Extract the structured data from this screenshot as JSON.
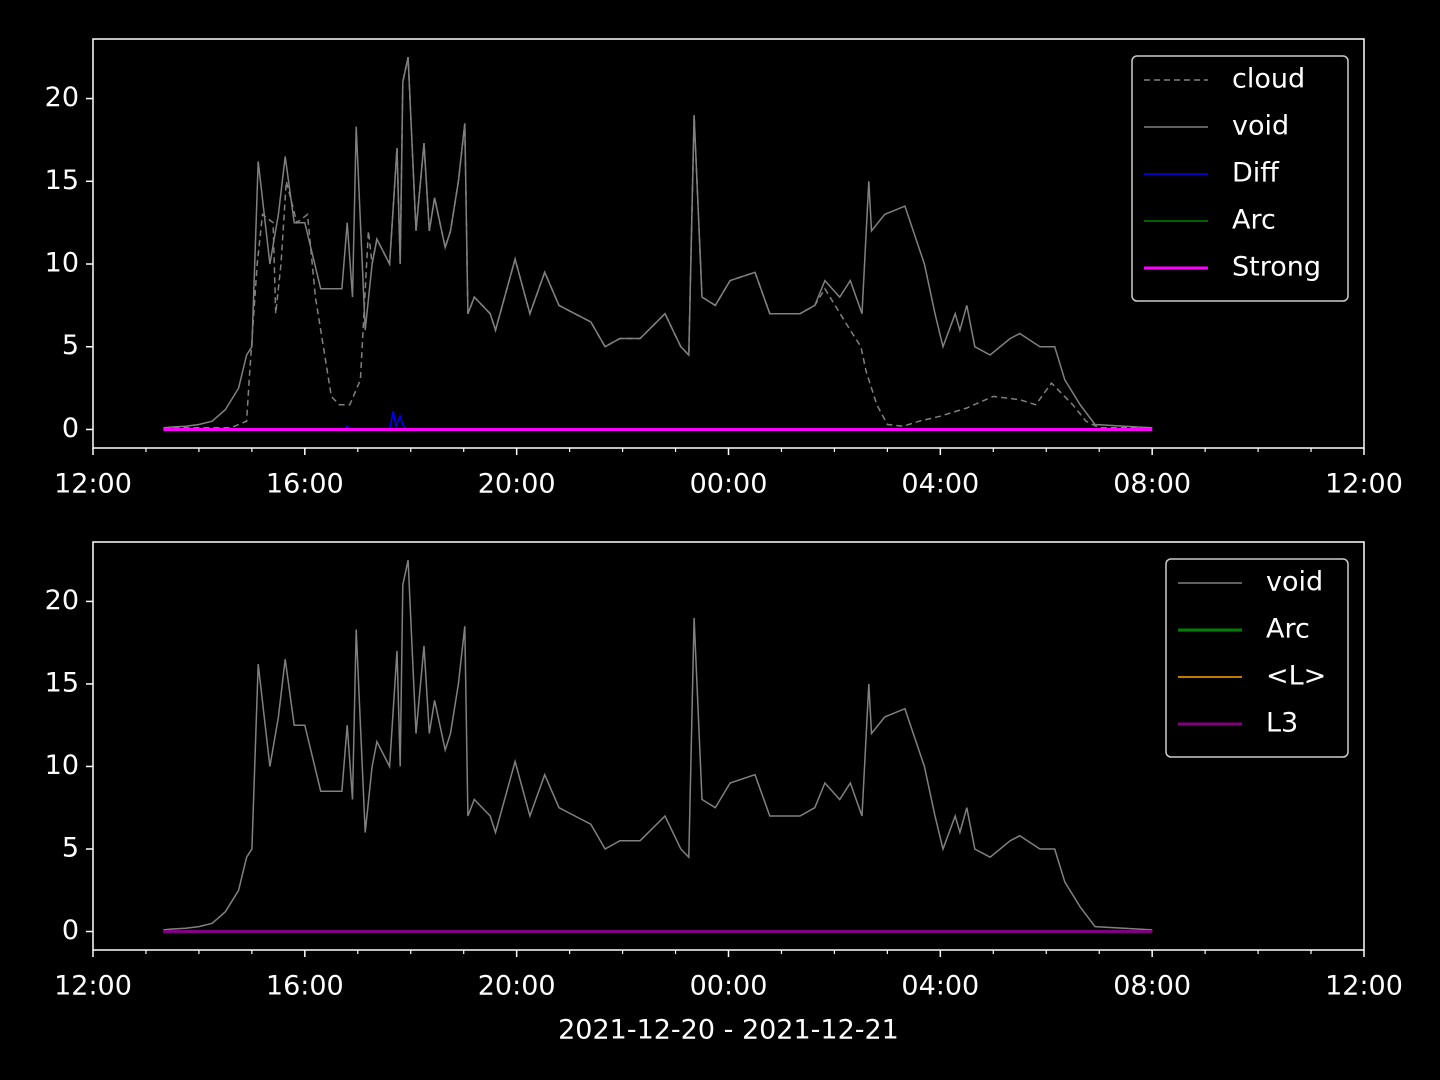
{
  "chart_data": [
    {
      "type": "line",
      "legend": "upper right",
      "xlim": [
        0,
        24
      ],
      "xticks": [
        {
          "value": 0,
          "label": "12:00"
        },
        {
          "value": 4,
          "label": "16:00"
        },
        {
          "value": 8,
          "label": "20:00"
        },
        {
          "value": 12,
          "label": "00:00"
        },
        {
          "value": 16,
          "label": "04:00"
        },
        {
          "value": 20,
          "label": "08:00"
        },
        {
          "value": 24,
          "label": "12:00"
        }
      ],
      "xminorticks": [
        1,
        2,
        3,
        5,
        6,
        7,
        9,
        10,
        11,
        13,
        14,
        15,
        17,
        18,
        19,
        21,
        22,
        23
      ],
      "ylim": [
        -1.12,
        23.6
      ],
      "yticks": [
        0,
        5,
        10,
        15,
        20
      ],
      "series": [
        {
          "name": "cloud",
          "color": "#808080",
          "dash": "dashed",
          "width": 1.5,
          "x": [
            1.33,
            2.6,
            2.9,
            2.95,
            3.1,
            3.2,
            3.4,
            3.45,
            3.55,
            3.65,
            3.85,
            4.05,
            4.2,
            4.35,
            4.5,
            4.65,
            4.85,
            5.05,
            5.2,
            5.27,
            5.36,
            5.6,
            5.74,
            5.8,
            5.85,
            5.95,
            6.1,
            6.25,
            6.35,
            6.45,
            6.65,
            6.75,
            6.9,
            7.02,
            7.08,
            7.2,
            7.5,
            7.6,
            7.97,
            8.25,
            8.53,
            8.8,
            9.1,
            9.4,
            9.67,
            9.95,
            10.33,
            10.8,
            11.1,
            11.25,
            11.35,
            11.5,
            11.75,
            12.03,
            12.5,
            12.78,
            13.35,
            13.63,
            13.82,
            14.3,
            14.5,
            14.6,
            14.8,
            15.0,
            15.3,
            15.6,
            16.0,
            16.5,
            17.0,
            17.5,
            17.8,
            18.1,
            18.5,
            18.75,
            19.0,
            20.0
          ],
          "values": [
            0.1,
            0.1,
            0.5,
            3,
            10,
            13,
            12.5,
            7,
            10,
            15,
            12.5,
            13,
            8,
            5,
            2,
            1.5,
            1.5,
            3,
            12,
            10,
            11.5,
            10,
            17,
            10,
            21,
            22.5,
            12,
            17.3,
            12,
            14,
            11,
            12,
            15,
            18.5,
            7,
            8,
            7,
            6,
            10.3,
            7,
            9.5,
            7.5,
            7,
            6.5,
            5,
            5.5,
            5.5,
            7,
            5,
            4.5,
            19,
            8,
            7.5,
            9,
            9.5,
            7,
            7,
            7.5,
            8.5,
            6,
            5,
            3.5,
            1.5,
            0.3,
            0.2,
            0.5,
            0.8,
            1.3,
            2,
            1.8,
            1.5,
            2.8,
            1.5,
            0.5,
            0.1,
            0.1
          ]
        },
        {
          "name": "void",
          "color": "#808080",
          "width": 1.5,
          "x": [
            1.33,
            1.5,
            1.75,
            2.0,
            2.25,
            2.5,
            2.75,
            2.9,
            3.0,
            3.12,
            3.34,
            3.5,
            3.63,
            3.8,
            4.0,
            4.3,
            4.7,
            4.8,
            4.9,
            4.97,
            5.14,
            5.27,
            5.36,
            5.6,
            5.74,
            5.8,
            5.85,
            5.95,
            6.1,
            6.25,
            6.35,
            6.45,
            6.65,
            6.75,
            6.9,
            7.02,
            7.08,
            7.2,
            7.5,
            7.6,
            7.97,
            8.25,
            8.53,
            8.8,
            9.1,
            9.4,
            9.67,
            9.95,
            10.33,
            10.8,
            11.1,
            11.25,
            11.35,
            11.5,
            11.75,
            12.03,
            12.5,
            12.78,
            13.35,
            13.63,
            13.82,
            14.1,
            14.3,
            14.52,
            14.65,
            14.7,
            14.95,
            15.33,
            15.7,
            15.9,
            16.05,
            16.28,
            16.37,
            16.5,
            16.65,
            16.94,
            17.32,
            17.5,
            17.88,
            18.16,
            18.35,
            18.64,
            18.92,
            20.0
          ],
          "values": [
            0.1,
            0.15,
            0.2,
            0.3,
            0.5,
            1.2,
            2.5,
            4.5,
            5,
            16.2,
            10,
            13,
            16.5,
            12.5,
            12.5,
            8.5,
            8.5,
            12.5,
            8,
            18.3,
            6,
            10,
            11.5,
            10,
            17,
            10,
            21,
            22.5,
            12,
            17.3,
            12,
            14,
            11,
            12,
            15,
            18.5,
            7,
            8,
            7,
            6,
            10.3,
            7,
            9.5,
            7.5,
            7,
            6.5,
            5,
            5.5,
            5.5,
            7,
            5,
            4.5,
            19,
            8,
            7.5,
            9,
            9.5,
            7,
            7,
            7.5,
            9,
            8,
            9,
            7,
            15,
            12,
            13,
            13.5,
            10,
            7,
            5,
            7,
            6,
            7.5,
            5,
            4.5,
            5.5,
            5.8,
            5,
            5,
            3,
            1.5,
            0.3,
            0.1
          ]
        },
        {
          "name": "Diff",
          "color": "#0000ff",
          "width": 1.5,
          "x": [
            1.33,
            4.75,
            4.8,
            4.85,
            5.6,
            5.67,
            5.72,
            5.8,
            5.85,
            5.9,
            20.0
          ],
          "values": [
            0,
            0,
            0.2,
            0,
            0,
            1.1,
            0.2,
            0.8,
            0.3,
            0,
            0
          ]
        },
        {
          "name": "Arc",
          "color": "#008000",
          "width": 1.5,
          "x": [
            1.33,
            20.0
          ],
          "values": [
            0,
            0
          ]
        },
        {
          "name": "Strong",
          "color": "#ff00ff",
          "width": 3,
          "x": [
            1.33,
            20.0
          ],
          "values": [
            0,
            0
          ]
        }
      ]
    },
    {
      "type": "line",
      "legend": "upper right",
      "xlabel": "2021-12-20 - 2021-12-21",
      "xlim": [
        0,
        24
      ],
      "xticks": [
        {
          "value": 0,
          "label": "12:00"
        },
        {
          "value": 4,
          "label": "16:00"
        },
        {
          "value": 8,
          "label": "20:00"
        },
        {
          "value": 12,
          "label": "00:00"
        },
        {
          "value": 16,
          "label": "04:00"
        },
        {
          "value": 20,
          "label": "08:00"
        },
        {
          "value": 24,
          "label": "12:00"
        }
      ],
      "xminorticks": [
        1,
        2,
        3,
        5,
        6,
        7,
        9,
        10,
        11,
        13,
        14,
        15,
        17,
        18,
        19,
        21,
        22,
        23
      ],
      "ylim": [
        -1.12,
        23.6
      ],
      "yticks": [
        0,
        5,
        10,
        15,
        20
      ],
      "series": [
        {
          "name": "void",
          "color": "#808080",
          "width": 1.5,
          "x": [
            1.33,
            1.5,
            1.75,
            2.0,
            2.25,
            2.5,
            2.75,
            2.9,
            3.0,
            3.12,
            3.34,
            3.5,
            3.63,
            3.8,
            4.0,
            4.3,
            4.7,
            4.8,
            4.9,
            4.97,
            5.14,
            5.27,
            5.36,
            5.6,
            5.74,
            5.8,
            5.85,
            5.95,
            6.1,
            6.25,
            6.35,
            6.45,
            6.65,
            6.75,
            6.9,
            7.02,
            7.08,
            7.2,
            7.5,
            7.6,
            7.97,
            8.25,
            8.53,
            8.8,
            9.1,
            9.4,
            9.67,
            9.95,
            10.33,
            10.8,
            11.1,
            11.25,
            11.35,
            11.5,
            11.75,
            12.03,
            12.5,
            12.78,
            13.35,
            13.63,
            13.82,
            14.1,
            14.3,
            14.52,
            14.65,
            14.7,
            14.95,
            15.33,
            15.7,
            15.9,
            16.05,
            16.28,
            16.37,
            16.5,
            16.65,
            16.94,
            17.32,
            17.5,
            17.88,
            18.16,
            18.35,
            18.64,
            18.92,
            20.0
          ],
          "values": [
            0.1,
            0.15,
            0.2,
            0.3,
            0.5,
            1.2,
            2.5,
            4.5,
            5,
            16.2,
            10,
            13,
            16.5,
            12.5,
            12.5,
            8.5,
            8.5,
            12.5,
            8,
            18.3,
            6,
            10,
            11.5,
            10,
            17,
            10,
            21,
            22.5,
            12,
            17.3,
            12,
            14,
            11,
            12,
            15,
            18.5,
            7,
            8,
            7,
            6,
            10.3,
            7,
            9.5,
            7.5,
            7,
            6.5,
            5,
            5.5,
            5.5,
            7,
            5,
            4.5,
            19,
            8,
            7.5,
            9,
            9.5,
            7,
            7,
            7.5,
            9,
            8,
            9,
            7,
            15,
            12,
            13,
            13.5,
            10,
            7,
            5,
            7,
            6,
            7.5,
            5,
            4.5,
            5.5,
            5.8,
            5,
            5,
            3,
            1.5,
            0.3,
            0.1
          ]
        },
        {
          "name": "Arc",
          "color": "#008000",
          "width": 3,
          "x": [
            1.33,
            20.0
          ],
          "values": [
            0,
            0
          ]
        },
        {
          "name": "<L>",
          "color": "#ffa500",
          "width": 1.5,
          "x": [
            1.33,
            20.0
          ],
          "values": [
            0,
            0
          ]
        },
        {
          "name": "L3",
          "color": "#800080",
          "width": 3,
          "x": [
            1.33,
            20.0
          ],
          "values": [
            0,
            0
          ]
        }
      ]
    }
  ]
}
